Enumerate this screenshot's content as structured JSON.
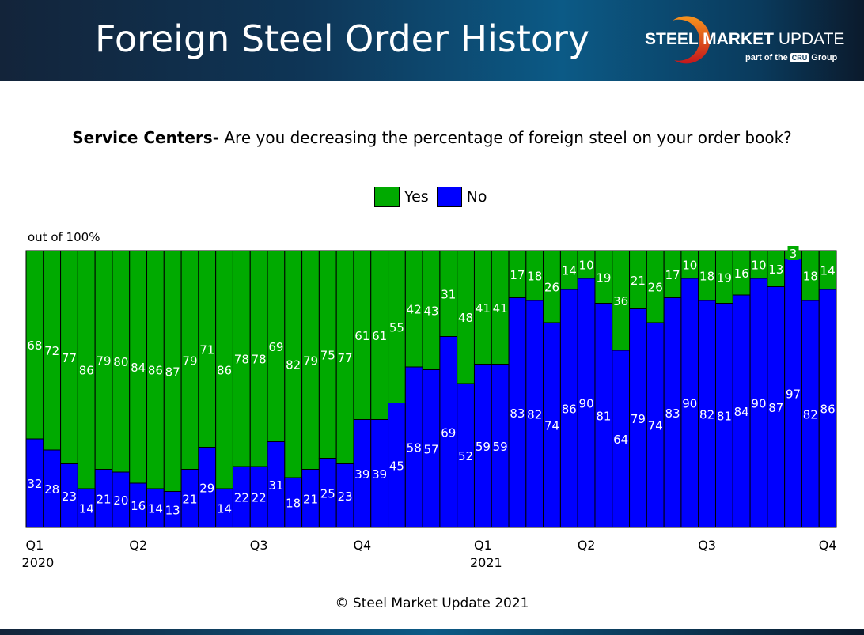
{
  "header": {
    "title": "Foreign Steel Order History"
  },
  "logo": {
    "text_bold": "STEEL MARKET",
    "text_light": "UPDATE",
    "sub_pre": "part of the",
    "sub_brand": "CRU",
    "sub_post": "Group"
  },
  "question": {
    "bold": "Service Centers-",
    "text": " Are you decreasing the percentage of foreign steel on your order book?"
  },
  "footer": {
    "copyright": "© Steel Market Update 2021"
  },
  "chart_data": {
    "type": "bar",
    "stacked": true,
    "ylabel": "out of 100%",
    "ylim": [
      0,
      100
    ],
    "grid": false,
    "legend_placement": "top",
    "colors": {
      "Yes": "#00aa00",
      "No": "#0000ff"
    },
    "ticks": [
      {
        "index": 0,
        "label": "Q1",
        "year": "2020"
      },
      {
        "index": 6,
        "label": "Q2",
        "year": ""
      },
      {
        "index": 13,
        "label": "Q3",
        "year": ""
      },
      {
        "index": 19,
        "label": "Q4",
        "year": ""
      },
      {
        "index": 26,
        "label": "Q1",
        "year": "2021"
      },
      {
        "index": 32,
        "label": "Q2",
        "year": ""
      },
      {
        "index": 39,
        "label": "Q3",
        "year": ""
      },
      {
        "index": 46,
        "label": "Q4",
        "year": ""
      }
    ],
    "series": [
      {
        "name": "No",
        "values": [
          32,
          28,
          23,
          14,
          21,
          20,
          16,
          14,
          13,
          21,
          29,
          14,
          22,
          22,
          31,
          18,
          21,
          25,
          23,
          39,
          39,
          45,
          58,
          57,
          69,
          52,
          59,
          59,
          83,
          82,
          74,
          86,
          90,
          81,
          64,
          79,
          74,
          83,
          90,
          82,
          81,
          84,
          90,
          87,
          97,
          82,
          86
        ]
      },
      {
        "name": "Yes",
        "values": [
          68,
          72,
          77,
          86,
          79,
          80,
          84,
          86,
          87,
          79,
          71,
          86,
          78,
          78,
          69,
          82,
          79,
          75,
          77,
          61,
          61,
          55,
          42,
          43,
          31,
          48,
          41,
          41,
          17,
          18,
          26,
          14,
          10,
          19,
          36,
          21,
          26,
          17,
          10,
          18,
          19,
          16,
          10,
          13,
          3,
          18,
          14
        ]
      }
    ]
  }
}
